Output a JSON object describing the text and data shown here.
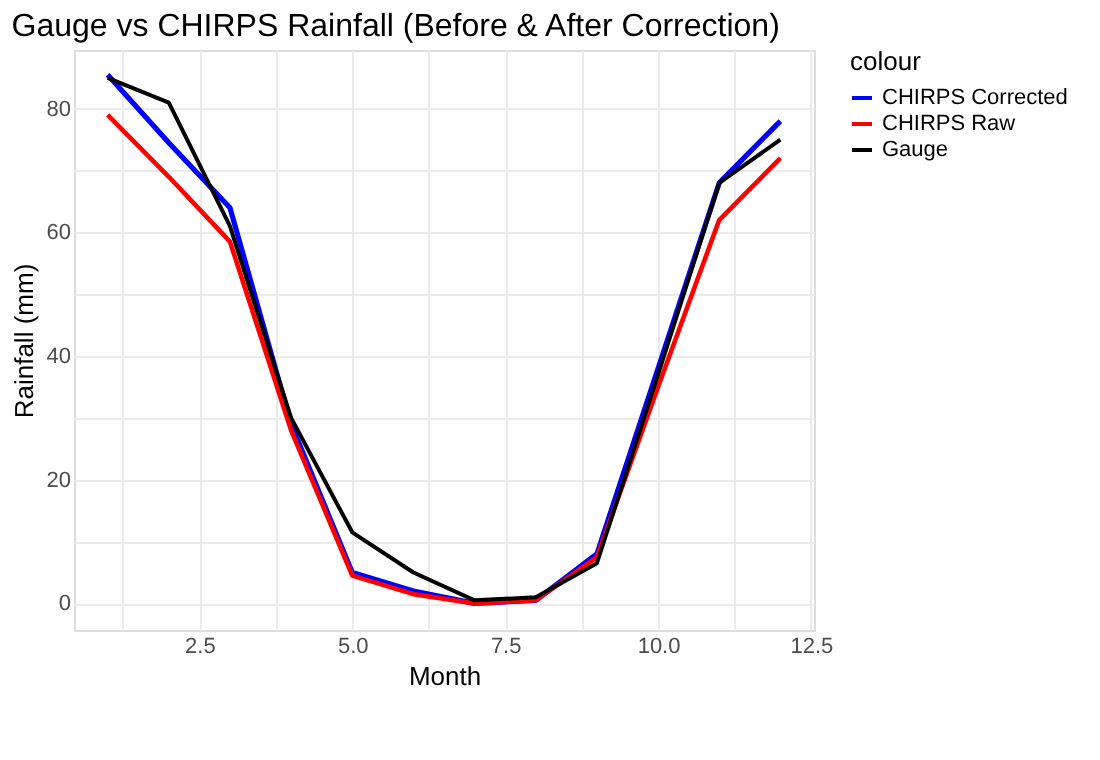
{
  "chart_data": {
    "type": "line",
    "title": "Gauge vs CHIRPS Rainfall (Before & After Correction)",
    "xlabel": "Month",
    "ylabel": "Rainfall (mm)",
    "legend_title": "colour",
    "legend": "right",
    "grid": true,
    "x": [
      1,
      2,
      3,
      4,
      5,
      6,
      7,
      8,
      9,
      10,
      11,
      12
    ],
    "xlim": [
      0.45,
      12.55
    ],
    "xticks": [
      {
        "value": 1.25,
        "label": null
      },
      2.5,
      {
        "value": 3.75,
        "label": null
      },
      {
        "value": 5,
        "label": "5.0"
      },
      {
        "value": 6.25,
        "label": null
      },
      7.5,
      {
        "value": 8.75,
        "label": null
      },
      {
        "value": 10,
        "label": "10.0"
      },
      {
        "value": 11.25,
        "label": null
      },
      12.5
    ],
    "ylim": [
      -4.3,
      89.5
    ],
    "yticks": [
      0,
      {
        "value": 10,
        "label": null
      },
      20,
      {
        "value": 30,
        "label": null
      },
      40,
      {
        "value": 50,
        "label": null
      },
      60,
      {
        "value": 70,
        "label": null
      },
      80
    ],
    "series": [
      {
        "name": "CHIRPS Corrected",
        "color": "#0000ff",
        "values": [
          85.5,
          74.5,
          64,
          29,
          5,
          2,
          0,
          0.5,
          8,
          38,
          68,
          78
        ]
      },
      {
        "name": "CHIRPS Raw",
        "color": "#ff0000",
        "values": [
          79,
          69,
          58.5,
          28,
          4.5,
          1.5,
          0,
          0.5,
          7.5,
          35,
          62,
          72
        ]
      },
      {
        "name": "Gauge",
        "color": "#000000",
        "values": [
          85,
          81,
          61,
          30,
          11.5,
          5,
          0.5,
          1,
          6.5,
          37,
          68,
          75
        ]
      }
    ]
  }
}
